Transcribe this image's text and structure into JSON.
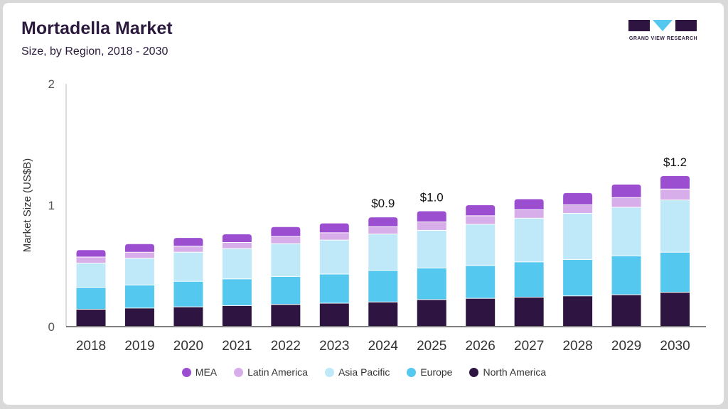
{
  "header": {
    "title": "Mortadella Market",
    "subtitle": "Size, by Region, 2018 - 2030",
    "logo_text": "GRAND VIEW RESEARCH"
  },
  "colors": {
    "North America": "#2e1440",
    "Europe": "#55c8f0",
    "Asia Pacific": "#bfe9f8",
    "Latin America": "#d7aeea",
    "MEA": "#9b4fd0"
  },
  "chart_data": {
    "type": "bar",
    "stacked": true,
    "title": "Mortadella Market",
    "subtitle": "Size, by Region, 2018 - 2030",
    "xlabel": "",
    "ylabel": "Market Size (US$B)",
    "ylim": [
      0,
      2
    ],
    "yticks": [
      "0",
      "1",
      "2"
    ],
    "categories": [
      "2018",
      "2019",
      "2020",
      "2021",
      "2022",
      "2023",
      "2024",
      "2025",
      "2026",
      "2027",
      "2028",
      "2029",
      "2030"
    ],
    "series": [
      {
        "name": "North America",
        "values": [
          0.14,
          0.15,
          0.16,
          0.17,
          0.18,
          0.19,
          0.2,
          0.22,
          0.23,
          0.24,
          0.25,
          0.26,
          0.28
        ]
      },
      {
        "name": "Europe",
        "values": [
          0.18,
          0.19,
          0.21,
          0.22,
          0.23,
          0.24,
          0.26,
          0.26,
          0.27,
          0.29,
          0.3,
          0.32,
          0.33
        ]
      },
      {
        "name": "Asia Pacific",
        "values": [
          0.2,
          0.22,
          0.24,
          0.25,
          0.27,
          0.28,
          0.3,
          0.31,
          0.34,
          0.36,
          0.38,
          0.4,
          0.43
        ]
      },
      {
        "name": "Latin America",
        "values": [
          0.05,
          0.05,
          0.05,
          0.05,
          0.06,
          0.06,
          0.06,
          0.07,
          0.07,
          0.07,
          0.07,
          0.08,
          0.09
        ]
      },
      {
        "name": "MEA",
        "values": [
          0.06,
          0.07,
          0.07,
          0.07,
          0.08,
          0.08,
          0.08,
          0.09,
          0.09,
          0.09,
          0.1,
          0.11,
          0.11
        ]
      }
    ],
    "data_labels": [
      {
        "category": "2024",
        "text": "$0.9"
      },
      {
        "category": "2025",
        "text": "$1.0"
      },
      {
        "category": "2030",
        "text": "$1.2"
      }
    ],
    "legend": [
      "MEA",
      "Latin America",
      "Asia Pacific",
      "Europe",
      "North America"
    ],
    "legend_position": "bottom",
    "grid": false
  }
}
